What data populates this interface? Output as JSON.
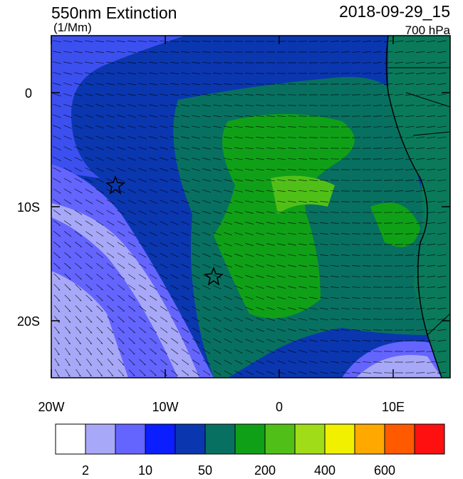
{
  "title": "550nm Extinction",
  "units": "(1/Mm)",
  "valid_time": "2018-09-29_15",
  "level": "700 hPa",
  "map": {
    "xlim": [
      -20,
      15
    ],
    "ylim": [
      -25,
      5
    ],
    "xticks": [
      {
        "value": -20,
        "label": "20W"
      },
      {
        "value": -10,
        "label": "10W"
      },
      {
        "value": 0,
        "label": "0"
      },
      {
        "value": 10,
        "label": "10E"
      }
    ],
    "yticks": [
      {
        "value": 0,
        "label": "0"
      },
      {
        "value": -10,
        "label": "10S"
      },
      {
        "value": -20,
        "label": "20S"
      }
    ]
  },
  "colorbar": {
    "colors": [
      "#ffffff",
      "#a8a8f8",
      "#6464ff",
      "#0a1eff",
      "#0a37b0",
      "#087060",
      "#10a018",
      "#50c018",
      "#a0dc18",
      "#f0f000",
      "#ffa800",
      "#ff5a00",
      "#ff1010"
    ],
    "ticks": [
      2,
      10,
      50,
      200,
      400,
      600
    ]
  }
}
